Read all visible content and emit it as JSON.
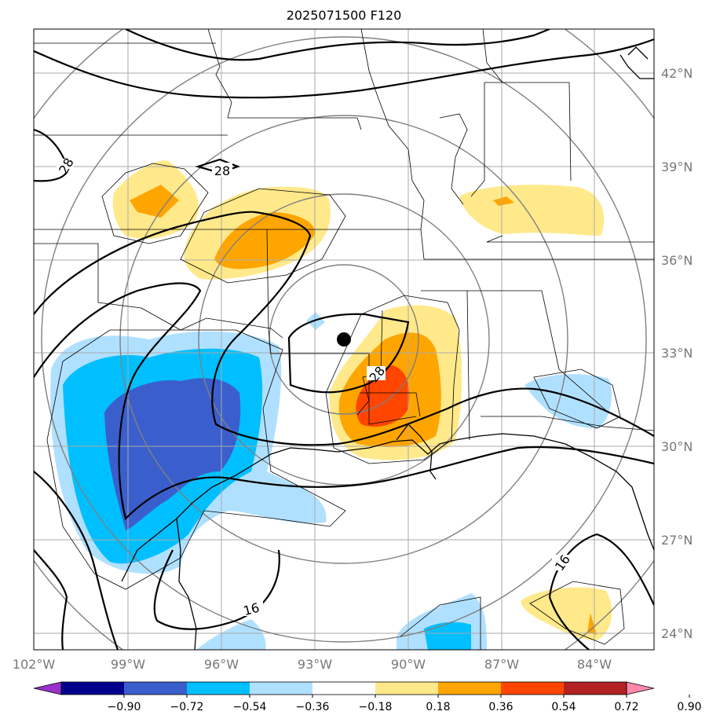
{
  "title": "2025071500 F120",
  "lat_labels": [
    "42°N",
    "39°N",
    "36°N",
    "33°N",
    "30°N",
    "27°N",
    "24°N"
  ],
  "lon_labels": [
    "102°W",
    "99°W",
    "96°W",
    "93°W",
    "90°W",
    "87°W",
    "84°W"
  ],
  "contour_labels": [
    "28",
    "28",
    "28",
    "16",
    "16"
  ],
  "colorbar": {
    "ticks": [
      "−0.90",
      "−0.72",
      "−0.54",
      "−0.36",
      "−0.18",
      "0.18",
      "0.36",
      "0.54",
      "0.72",
      "0.90"
    ],
    "colors": [
      "#9932cc",
      "#00008b",
      "#3a5fcd",
      "#00bfff",
      "#b0e0ff",
      "#ffffff",
      "#ffe98a",
      "#ffa500",
      "#ff4500",
      "#b22222",
      "#ff88aa"
    ]
  },
  "fill_colors": {
    "neg_light": "#b0e0ff",
    "neg_mid": "#00bfff",
    "neg_dark": "#3a5fcd",
    "pos_light": "#ffe98a",
    "pos_mid": "#ffa500",
    "pos_dark": "#ff4500"
  },
  "center_marker": "black-dot"
}
